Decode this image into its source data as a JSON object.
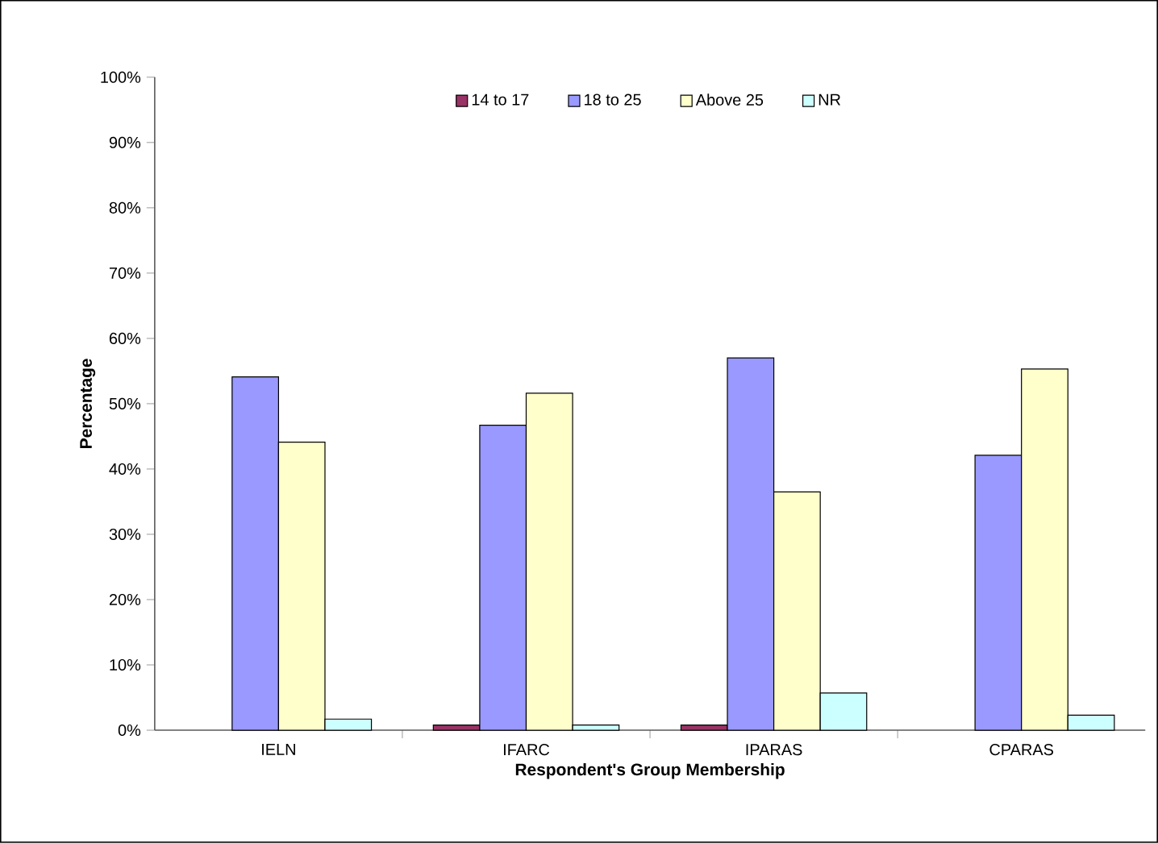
{
  "chart_data": {
    "type": "bar",
    "xlabel": "Respondent's Group Membership",
    "ylabel": "Percentage",
    "categories": [
      "IELN",
      "IFARC",
      "IPARAS",
      "CPARAS"
    ],
    "series": [
      {
        "name": "14 to 17",
        "color": "#993366",
        "values": [
          null,
          0.8,
          0.8,
          null
        ]
      },
      {
        "name": "18 to 25",
        "color": "#9999ff",
        "values": [
          54.1,
          46.7,
          57.0,
          42.1
        ]
      },
      {
        "name": "Above 25",
        "color": "#ffffcc",
        "values": [
          44.1,
          51.6,
          36.5,
          55.3
        ]
      },
      {
        "name": "NR",
        "color": "#ccffff",
        "values": [
          1.7,
          0.8,
          5.7,
          2.3
        ]
      }
    ],
    "ylim": [
      0,
      100
    ],
    "yticks": [
      {
        "value": 0,
        "label": "0%"
      },
      {
        "value": 10,
        "label": "10%"
      },
      {
        "value": 20,
        "label": "20%"
      },
      {
        "value": 30,
        "label": "30%"
      },
      {
        "value": 40,
        "label": "40%"
      },
      {
        "value": 50,
        "label": "50%"
      },
      {
        "value": 60,
        "label": "60%"
      },
      {
        "value": 70,
        "label": "70%"
      },
      {
        "value": 80,
        "label": "80%"
      },
      {
        "value": 90,
        "label": "90%"
      },
      {
        "value": 100,
        "label": "100%"
      }
    ],
    "legend": "top",
    "grid": false
  }
}
